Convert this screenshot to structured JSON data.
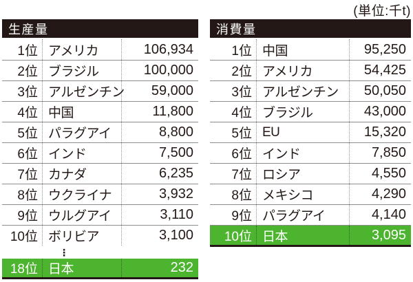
{
  "unit_label": "(単位:千t)",
  "colors": {
    "header_bg": "#231815",
    "header_text": "#ffffff",
    "highlight_bg": "#4db42f",
    "highlight_text": "#ffffff",
    "row_line": "#8c8c8c",
    "text": "#231815"
  },
  "chart_data": [
    {
      "type": "table",
      "title": "生産量",
      "unit": "千t",
      "ellipsis": "⋮",
      "rows": [
        {
          "rank": "1位",
          "name": "アメリカ",
          "value": "106,934"
        },
        {
          "rank": "2位",
          "name": "ブラジル",
          "value": "100,000"
        },
        {
          "rank": "3位",
          "name": "アルゼンチン",
          "value": "59,000"
        },
        {
          "rank": "4位",
          "name": "中国",
          "value": "11,800"
        },
        {
          "rank": "5位",
          "name": "パラグアイ",
          "value": "8,800"
        },
        {
          "rank": "6位",
          "name": "インド",
          "value": "7,500"
        },
        {
          "rank": "7位",
          "name": "カナダ",
          "value": "6,235"
        },
        {
          "rank": "8位",
          "name": "ウクライナ",
          "value": "3,932"
        },
        {
          "rank": "9位",
          "name": "ウルグアイ",
          "value": "3,110"
        },
        {
          "rank": "10位",
          "name": "ボリビア",
          "value": "3,100"
        },
        {
          "rank": "18位",
          "name": "日本",
          "value": "232",
          "highlight": true
        }
      ]
    },
    {
      "type": "table",
      "title": "消費量",
      "unit": "千t",
      "rows": [
        {
          "rank": "1位",
          "name": "中国",
          "value": "95,250"
        },
        {
          "rank": "2位",
          "name": "アメリカ",
          "value": "54,425"
        },
        {
          "rank": "3位",
          "name": "アルゼンチン",
          "value": "50,050"
        },
        {
          "rank": "4位",
          "name": "ブラジル",
          "value": "43,000"
        },
        {
          "rank": "5位",
          "name": "EU",
          "value": "15,320"
        },
        {
          "rank": "6位",
          "name": "インド",
          "value": "7,850"
        },
        {
          "rank": "7位",
          "name": "ロシア",
          "value": "4,550"
        },
        {
          "rank": "8位",
          "name": "メキシコ",
          "value": "4,290"
        },
        {
          "rank": "9位",
          "name": "パラグアイ",
          "value": "4,140"
        },
        {
          "rank": "10位",
          "name": "日本",
          "value": "3,095",
          "highlight": true
        }
      ]
    }
  ]
}
